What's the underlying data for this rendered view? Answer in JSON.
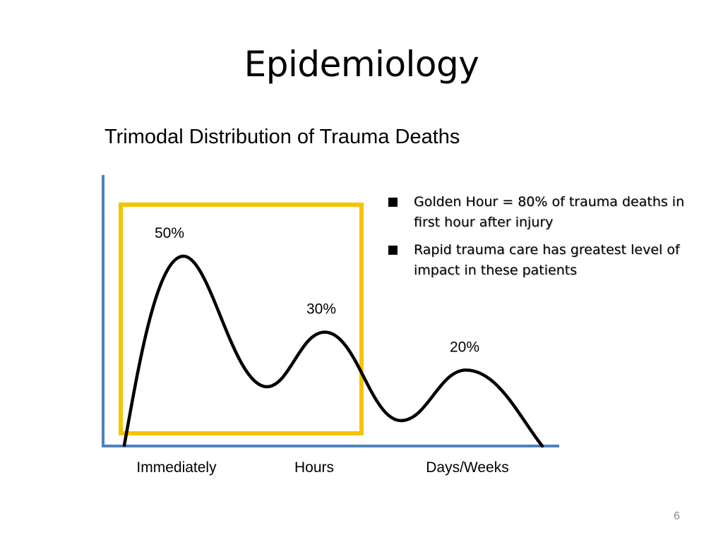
{
  "slide": {
    "title": "Epidemiology",
    "page_number": "6"
  },
  "bullets": [
    "Golden Hour = 80% of trauma deaths in first hour after injury",
    "Rapid trauma care has greatest level of impact in these patients"
  ],
  "colors": {
    "axis": "#4f81bd",
    "highlight_box": "#f5c400",
    "curve": "#000000"
  },
  "chart_data": {
    "type": "line",
    "title": "Trimodal Distribution of Trauma Deaths",
    "categories": [
      "Immediately",
      "Hours",
      "Days/Weeks"
    ],
    "peaks": [
      {
        "category": "Immediately",
        "value": 50,
        "label": "50%"
      },
      {
        "category": "Hours",
        "value": 30,
        "label": "30%"
      },
      {
        "category": "Days/Weeks",
        "value": 20,
        "label": "20%"
      }
    ],
    "highlight": {
      "covers": [
        "Immediately",
        "Hours"
      ],
      "description": "Golden Hour"
    },
    "grid": false,
    "legend": "none"
  }
}
